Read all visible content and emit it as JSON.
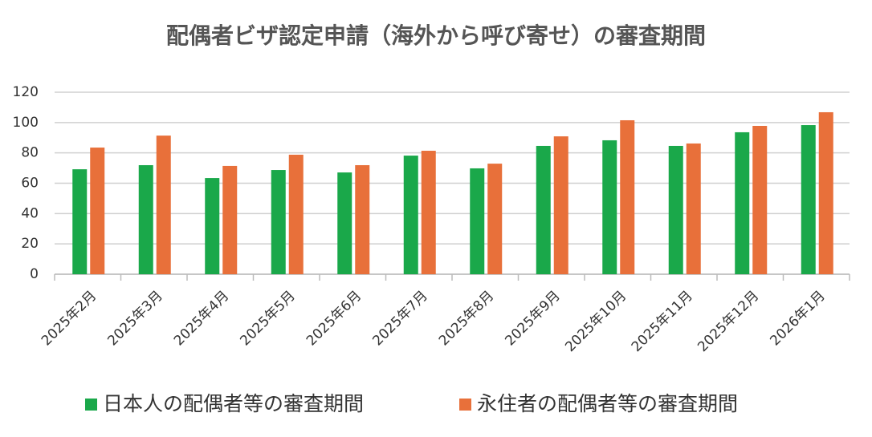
{
  "chart_data": {
    "type": "bar",
    "title": "配偶者ビザ認定申請（海外から呼び寄せ）の審査期間",
    "categories": [
      "2025年2月",
      "2025年3月",
      "2025年4月",
      "2025年5月",
      "2025年6月",
      "2025年7月",
      "2025年8月",
      "2025年9月",
      "2025年10月",
      "2025年11月",
      "2025年12月",
      "2026年1月"
    ],
    "series": [
      {
        "name": "日本人の配偶者等の審査期間",
        "color": "#1aa84a",
        "values": [
          69.2,
          71.9,
          63.4,
          68.7,
          67.1,
          78.2,
          69.8,
          84.6,
          88.3,
          84.6,
          93.6,
          98.3
        ]
      },
      {
        "name": "永住者の配偶者等の審査期間",
        "color": "#e8703a",
        "values": [
          83.5,
          91.4,
          71.4,
          78.8,
          71.9,
          81.4,
          72.9,
          90.9,
          101.5,
          86.2,
          97.8,
          106.8
        ]
      }
    ],
    "ylim": [
      0,
      120
    ],
    "yticks": [
      0,
      20,
      40,
      60,
      80,
      100,
      120
    ],
    "grid": true,
    "legend": "bottom"
  }
}
